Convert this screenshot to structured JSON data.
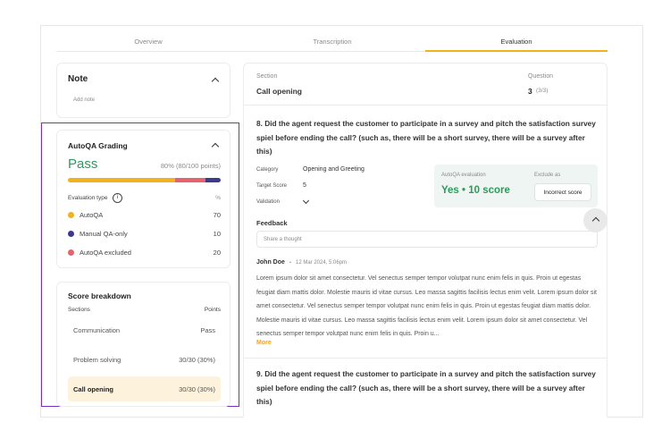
{
  "tabs": {
    "items": [
      "Overview",
      "Transcription",
      "Evaluation"
    ]
  },
  "note": {
    "title": "Note",
    "placeholder": "Add note"
  },
  "grading": {
    "title": "AutoQA Grading",
    "result": "Pass",
    "score": "80% (80/100 points)",
    "evaluation_type_label": "Evaluation type",
    "percent_header": "%",
    "items": [
      {
        "name": "AutoQA",
        "value": 70,
        "color": "#f2b21b"
      },
      {
        "name": "Manual QA-only",
        "value": 10,
        "color": "#3d3a8c"
      },
      {
        "name": "AutoQA excluded",
        "value": 20,
        "color": "#e5636f"
      }
    ]
  },
  "breakdown": {
    "title": "Score breakdown",
    "columns": [
      "Sections",
      "Points"
    ],
    "rows": [
      [
        "Communication",
        "Pass"
      ],
      [
        "Problem solving",
        "30/30 (30%)"
      ],
      [
        "Call opening",
        "30/30 (30%)"
      ]
    ]
  },
  "panel": {
    "section_label": "Section",
    "section": "Call opening",
    "question_label": "Question",
    "question_number": "3",
    "question_of": "(3/3)",
    "questions": [
      {
        "text": "8. Did the agent request the customer to participate in a survey and pitch the satisfaction survey spiel before ending the call? (such as, there will be a short survey, there will be a survey after this)",
        "details": [
          [
            "Category",
            "Opening and Greeting"
          ],
          [
            "Target Score",
            "5"
          ],
          [
            "Validation",
            ""
          ]
        ],
        "evaluation_label": "AutoQA evaluation",
        "evaluation": "Yes • 10 score",
        "exclude_label": "Exclude as",
        "exclude_button": "Incorrect score",
        "feedback_label": "Feedback",
        "feedback_placeholder": "Share a thought",
        "comment": {
          "author": "John Doe",
          "date": "12 Mar 2024, 5:06pm",
          "text": "Lorem ipsum dolor sit amet consectetur. Vel senectus semper tempor volutpat nunc enim felis in quis. Proin ut egestas feugiat diam mattis dolor. Molestie mauris id vitae cursus. Leo massa sagittis facilisis lectus enim velit. Lorem ipsum dolor sit amet consectetur. Vel senectus semper tempor volutpat nunc enim felis in quis. Proin ut egestas feugiat diam mattis dolor. Molestie mauris id vitae cursus. Leo massa sagittis facilisis lectus enim velit. Lorem ipsum dolor sit amet consectetur. Vel senectus semper tempor volutpat nunc enim felis in quis. Proin u...",
          "more": "More"
        }
      },
      {
        "text": "9. Did the agent request the customer to participate in a survey and pitch the satisfaction survey spiel before ending the call? (such as, there will be a short survey, there will be a survey after this)"
      }
    ]
  }
}
